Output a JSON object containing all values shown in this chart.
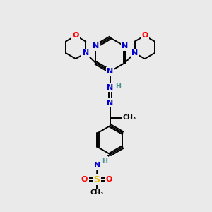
{
  "bg_color": "#eaeaea",
  "atom_colors": {
    "C": "#000000",
    "N": "#0000cc",
    "O": "#ff0000",
    "S": "#e6b800",
    "H": "#4a9090"
  },
  "bond_color": "#000000",
  "lw": 1.4,
  "fs": 8.0,
  "fs_small": 6.8
}
